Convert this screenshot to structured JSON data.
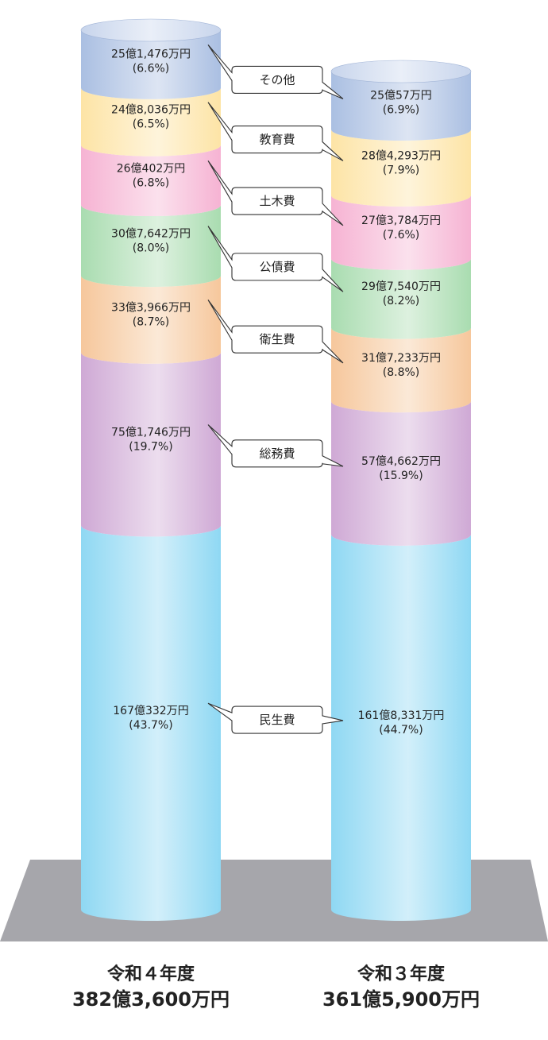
{
  "chart_data": {
    "type": "stacked-cylinder",
    "categories": [
      "民生費",
      "総務費",
      "衛生費",
      "公債費",
      "土木費",
      "教育費",
      "その他"
    ],
    "colors": {
      "民生費": "#8fd8f3",
      "総務費": "#cfa9d5",
      "衛生費": "#f6c79c",
      "公債費": "#a9dcb0",
      "土木費": "#f6b3d3",
      "教育費": "#fde4a6",
      "その他": "#aabfe2"
    },
    "series": [
      {
        "name": "令和４年度",
        "total_label": "382億3,600万円",
        "values_man_yen": [
          1670332,
          751746,
          333966,
          307642,
          260402,
          248036,
          251476
        ],
        "amount_labels": [
          "167億332万円",
          "75億1,746万円",
          "33億3,966万円",
          "30億7,642万円",
          "26億402万円",
          "24億8,036万円",
          "25億1,476万円"
        ],
        "percent_labels": [
          "(43.7%)",
          "(19.7%)",
          "(8.7%)",
          "(8.0%)",
          "(6.8%)",
          "(6.5%)",
          "(6.6%)"
        ]
      },
      {
        "name": "令和３年度",
        "total_label": "361億5,900万円",
        "values_man_yen": [
          1618331,
          574662,
          317233,
          297540,
          273784,
          284293,
          250057
        ],
        "amount_labels": [
          "161億8,331万円",
          "57億4,662万円",
          "31億7,233万円",
          "29億7,540万円",
          "27億3,784万円",
          "28億4,293万円",
          "25億57万円"
        ],
        "percent_labels": [
          "(44.7%)",
          "(15.9%)",
          "(8.8%)",
          "(8.2%)",
          "(7.6%)",
          "(7.9%)",
          "(6.9%)"
        ]
      }
    ]
  },
  "footer": {
    "left_year": "令和４年度",
    "left_total": "382億3,600万円",
    "right_year": "令和３年度",
    "right_total": "361億5,900万円"
  }
}
